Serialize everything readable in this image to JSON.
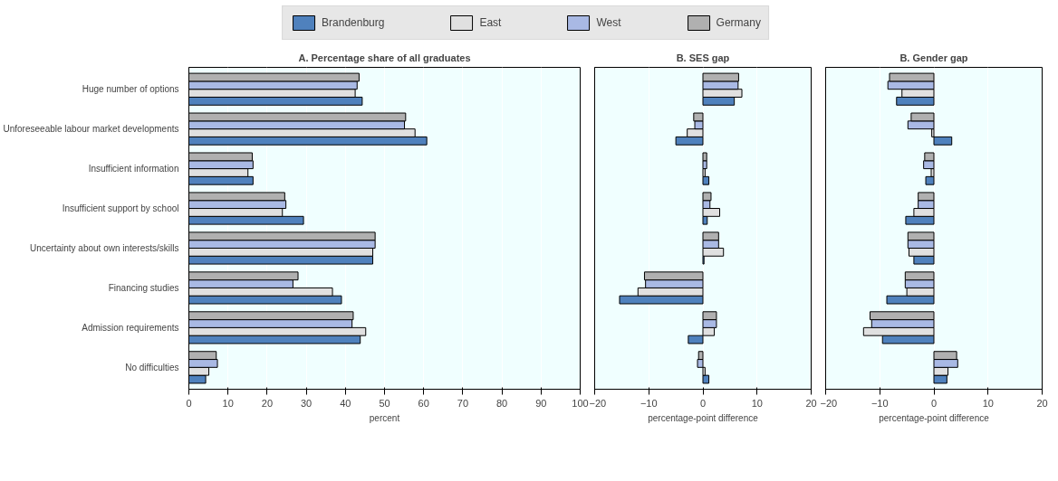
{
  "chart_data": [
    {
      "type": "bar",
      "orientation": "horizontal",
      "title": "A. Percentage share of all graduates",
      "xlabel": "percent",
      "legend": "top",
      "grid": "x",
      "categories": [
        "Huge number of options",
        "Unforeseeable labour market developments",
        "Insufficient information",
        "Insufficient support by school",
        "Uncertainty about own interests/skills",
        "Financing studies",
        "Admission requirements",
        "No difficulties"
      ],
      "xlim": [
        0,
        100
      ],
      "xticks": [
        0,
        10,
        20,
        30,
        40,
        50,
        60,
        70,
        80,
        90,
        100
      ],
      "series": [
        {
          "name": "Brandenburg",
          "color": "#4f81bd",
          "values": [
            44.3,
            60.8,
            16.4,
            29.3,
            47,
            39,
            43.8,
            4.3
          ]
        },
        {
          "name": "East",
          "color": "#e0e0e0",
          "values": [
            42.5,
            57.8,
            15.1,
            23.9,
            47,
            36.7,
            45.2,
            5.1
          ]
        },
        {
          "name": "West",
          "color": "#a9b9e4",
          "values": [
            43,
            55.1,
            16.4,
            24.8,
            47.6,
            26.6,
            41.7,
            7.3
          ]
        },
        {
          "name": "Germany",
          "color": "#b0b0b0",
          "values": [
            43.5,
            55.4,
            16.2,
            24.5,
            47.6,
            27.9,
            42,
            7
          ]
        }
      ]
    },
    {
      "type": "bar",
      "orientation": "horizontal",
      "title": "B. SES gap",
      "xlabel": "percentage-point difference",
      "grid": "x",
      "categories": [
        null,
        null,
        null,
        null,
        null,
        null,
        null,
        null
      ],
      "xlim": [
        -20,
        20
      ],
      "xticks": [
        -20,
        -10,
        0,
        10,
        20
      ],
      "series": [
        {
          "color": "#4f81bd",
          "values": [
            5.8,
            -5,
            1.1,
            0.8,
            0.2,
            -15.4,
            -2.7,
            1.1
          ]
        },
        {
          "color": "#e0e0e0",
          "values": [
            7.2,
            -2.9,
            0.4,
            3.1,
            3.8,
            -12,
            2.1,
            0.4
          ]
        },
        {
          "color": "#a9b9e4",
          "values": [
            6.5,
            -1.5,
            0.7,
            1.3,
            2.9,
            -10.6,
            2.5,
            -1
          ]
        },
        {
          "color": "#b0b0b0",
          "values": [
            6.6,
            -1.7,
            0.7,
            1.5,
            2.9,
            -10.8,
            2.5,
            -0.8
          ]
        }
      ]
    },
    {
      "type": "bar",
      "orientation": "horizontal",
      "title": "B. Gender gap",
      "xlabel": "percentage-point difference",
      "grid": "x",
      "categories": [
        null,
        null,
        null,
        null,
        null,
        null,
        null,
        null
      ],
      "xlim": [
        -20,
        20
      ],
      "xticks": [
        -20,
        -10,
        0,
        10,
        20
      ],
      "series": [
        {
          "color": "#4f81bd",
          "values": [
            -6.9,
            3.3,
            -1.5,
            -5.2,
            -3.7,
            -8.7,
            -9.5,
            2.4
          ]
        },
        {
          "color": "#e0e0e0",
          "values": [
            -5.9,
            -0.4,
            -0.5,
            -3.7,
            -4.6,
            -5,
            -13,
            2.6
          ]
        },
        {
          "color": "#a9b9e4",
          "values": [
            -8.5,
            -4.8,
            -1.9,
            -2.9,
            -4.8,
            -5.3,
            -11.5,
            4.4
          ]
        },
        {
          "color": "#b0b0b0",
          "values": [
            -8.2,
            -4.2,
            -1.7,
            -2.9,
            -4.8,
            -5.3,
            -11.8,
            4.2
          ]
        }
      ]
    }
  ]
}
